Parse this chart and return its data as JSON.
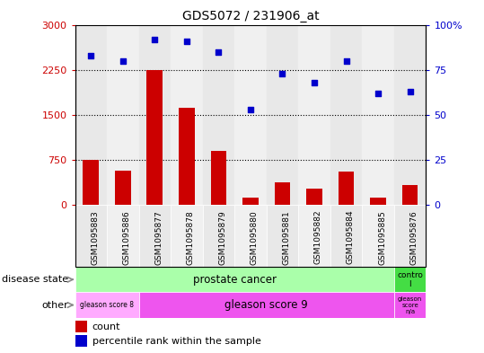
{
  "title": "GDS5072 / 231906_at",
  "samples": [
    "GSM1095883",
    "GSM1095886",
    "GSM1095877",
    "GSM1095878",
    "GSM1095879",
    "GSM1095880",
    "GSM1095881",
    "GSM1095882",
    "GSM1095884",
    "GSM1095885",
    "GSM1095876"
  ],
  "counts": [
    750,
    580,
    2250,
    1625,
    900,
    130,
    380,
    280,
    560,
    130,
    330
  ],
  "percentile_ranks": [
    83,
    80,
    92,
    91,
    85,
    53,
    73,
    68,
    80,
    62,
    63
  ],
  "left_ylim": [
    0,
    3000
  ],
  "right_ylim": [
    0,
    100
  ],
  "left_yticks": [
    0,
    750,
    1500,
    2250,
    3000
  ],
  "right_yticks": [
    0,
    25,
    50,
    75,
    100
  ],
  "left_yticklabels": [
    "0",
    "750",
    "1500",
    "2250",
    "3000"
  ],
  "right_yticklabels": [
    "0",
    "25",
    "50",
    "75",
    "100%"
  ],
  "bar_color": "#cc0000",
  "scatter_color": "#0000cc",
  "disease_state_colors": [
    "#aaffaa",
    "#44dd44"
  ],
  "other_colors_gs8": "#ffaaff",
  "other_colors_gs9": "#ee55ee",
  "disease_state_row_label": "disease state",
  "other_row_label": "other",
  "legend_count_label": "count",
  "legend_percentile_label": "percentile rank within the sample",
  "dotted_line_values": [
    750,
    1500,
    2250
  ],
  "col_bg_odd": "#e8e8e8",
  "col_bg_even": "#d8d8d8",
  "label_box_color": "#d0d0d0",
  "prostate_cancer_label": "prostate cancer",
  "control_label": "contro\nl",
  "gs8_label": "gleason score 8",
  "gs9_label": "gleason score 9",
  "gsna_label": "gleason\nscore\nn/a"
}
